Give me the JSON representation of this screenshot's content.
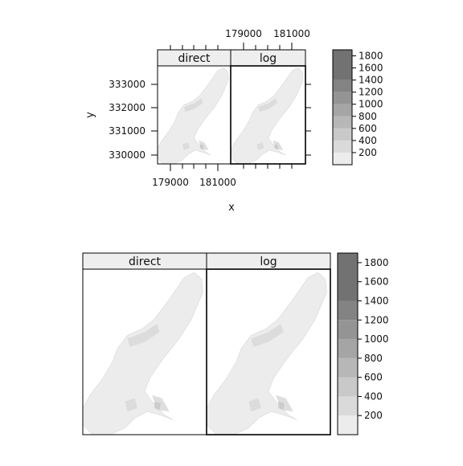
{
  "chart_data": [
    {
      "type": "heatmap",
      "title": "",
      "xlabel": "x",
      "ylabel": "y",
      "panels": [
        "direct",
        "log"
      ],
      "x_ticks": [
        "179000",
        "181000"
      ],
      "y_ticks": [
        "333000",
        "332000",
        "331000",
        "330000"
      ],
      "legend_levels": [
        200,
        400,
        600,
        800,
        1000,
        1200,
        1400,
        1600,
        1800
      ],
      "legend_range": [
        0,
        1900
      ],
      "legend_placement": "right",
      "colors": [
        "#ececec",
        "#dadada",
        "#c9c9c9",
        "#b7b7b7",
        "#a5a5a5",
        "#949494",
        "#838383",
        "#727272"
      ]
    },
    {
      "type": "heatmap",
      "title": "",
      "xlabel": "",
      "ylabel": "",
      "panels": [
        "direct",
        "log"
      ],
      "legend_levels": [
        200,
        400,
        600,
        800,
        1000,
        1200,
        1400,
        1600,
        1800
      ],
      "legend_range": [
        0,
        1900
      ],
      "legend_placement": "right",
      "colors": [
        "#ececec",
        "#dadada",
        "#c9c9c9",
        "#b7b7b7",
        "#a5a5a5",
        "#949494",
        "#838383",
        "#727272"
      ]
    }
  ]
}
